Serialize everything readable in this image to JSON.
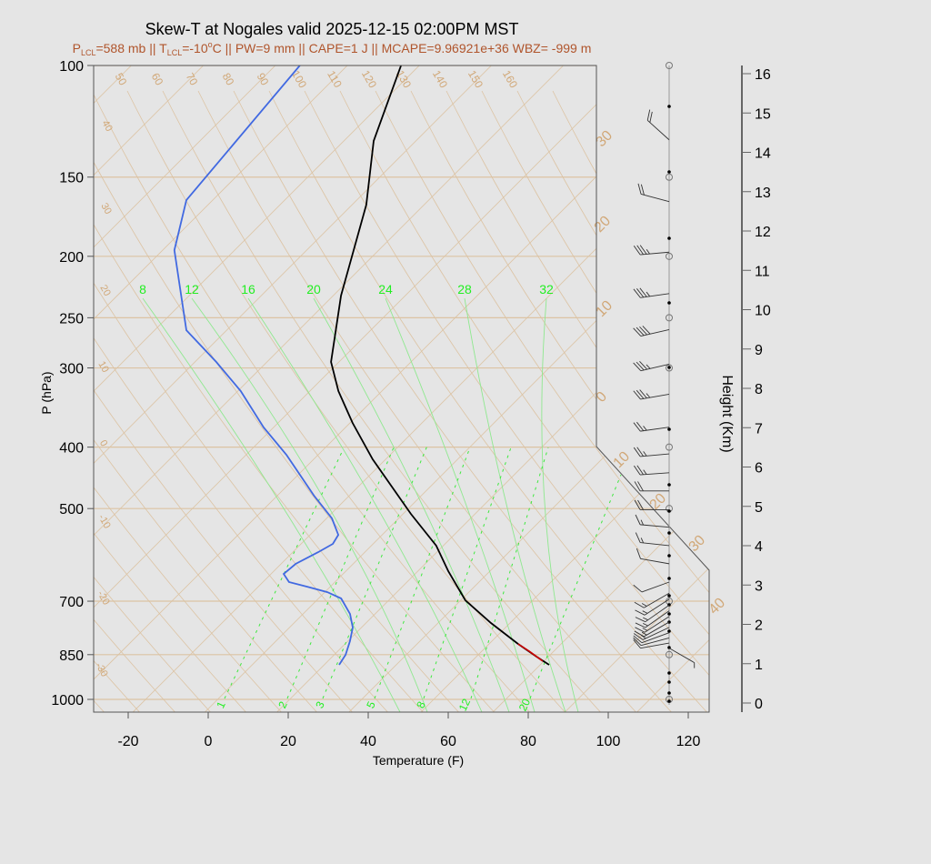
{
  "chart_data": {
    "type": "line",
    "title": "Skew-T at Nogales valid 2025-12-15 02:00PM MST",
    "subtitle": {
      "p_sym": "P",
      "p_sub": "LCL",
      "p_val": "=588 mb || T",
      "t_sub": "LCL",
      "t_val": "=-10",
      "deg": "o",
      "rest": "C || PW=9 mm || CAPE=1 J || MCAPE=9.96921e+36 WBZ= -999 m"
    },
    "xlabel": "Temperature (F)",
    "ylabel": "P (hPa)",
    "y2label": "Height (Km)",
    "xlim": [
      -28,
      125
    ],
    "ylim_hpa": [
      1035,
      100
    ],
    "x_ticks": [
      "-20",
      "0",
      "20",
      "40",
      "60",
      "80",
      "100",
      "120"
    ],
    "x_tick_values": [
      -20,
      0,
      20,
      40,
      60,
      80,
      100,
      120
    ],
    "y_ticks": [
      "100",
      "150",
      "200",
      "250",
      "300",
      "400",
      "500",
      "700",
      "850",
      "1000"
    ],
    "y_tick_values": [
      100,
      150,
      200,
      250,
      300,
      400,
      500,
      700,
      850,
      1000
    ],
    "height_ticks": [
      "0",
      "1",
      "2",
      "3",
      "4",
      "5",
      "6",
      "7",
      "8",
      "9",
      "10",
      "11",
      "12",
      "13",
      "14",
      "15",
      "16"
    ],
    "isotherm_labels_left": [
      "40",
      "30",
      "20",
      "10",
      "0",
      "-10",
      "-20",
      "-30"
    ],
    "isotherm_labels_right": [
      "30",
      "20",
      "10",
      "0",
      "10",
      "20",
      "30",
      "40"
    ],
    "dry_adiabat_labels": [
      "50",
      "60",
      "70",
      "80",
      "90",
      "100",
      "110",
      "120",
      "130",
      "140",
      "150",
      "160"
    ],
    "moist_adiabat_labels": [
      "8",
      "12",
      "16",
      "20",
      "24",
      "28",
      "32"
    ],
    "mixing_ratio_labels": [
      "1",
      "2",
      "3",
      "5",
      "8",
      "12",
      "20"
    ],
    "series": [
      {
        "name": "temperature",
        "color": "#000000",
        "unit": "F",
        "p": [
          100,
          131.5,
          165.8,
          230.7,
          293.6,
          326.3,
          366.3,
          418,
          509.7,
          572.2,
          627.9,
          653.1,
          697.6,
          757.8,
          817.6,
          856.3,
          882.1
        ],
        "t": [
          -110.2,
          -98.2,
          -84.1,
          -67.7,
          -53.6,
          -44.5,
          -33.0,
          -18.9,
          4.3,
          18.6,
          28.0,
          32.3,
          39.5,
          51.6,
          63.6,
          71.4,
          76.6
        ]
      },
      {
        "name": "dewpoint",
        "color": "#4169e1",
        "unit": "F",
        "p": [
          100,
          163.1,
          195.6,
          261.6,
          293.6,
          326.3,
          372.4,
          411.2,
          477,
          518.2,
          550.1,
          568.5,
          585.7,
          611.3,
          633.9,
          653.1,
          664.1,
          677.4,
          693.1,
          733.2,
          770.4,
          809.5,
          850.6,
          882.1
        ],
        "t": [
          -135.5,
          -130.2,
          -120.7,
          -97.7,
          -82.3,
          -68.9,
          -54.1,
          -41.6,
          -24.5,
          -14.3,
          -8.6,
          -7.7,
          -9.3,
          -12.0,
          -12.5,
          -9.1,
          -3.4,
          3.0,
          8.0,
          14.1,
          18.2,
          20.9,
          23.2,
          24.1
        ]
      },
      {
        "name": "highlight",
        "color": "#cc0000",
        "unit": "F",
        "p": [
          817.6,
          840,
          870
        ],
        "t": [
          63.6,
          68.3,
          74.0
        ]
      }
    ],
    "winds": [
      {
        "p": 131,
        "dir": 312,
        "kt": 20
      },
      {
        "p": 164,
        "dir": 285,
        "kt": 20
      },
      {
        "p": 197,
        "dir": 265,
        "kt": 35
      },
      {
        "p": 229,
        "dir": 262,
        "kt": 35
      },
      {
        "p": 261,
        "dir": 257,
        "kt": 40
      },
      {
        "p": 296,
        "dir": 257,
        "kt": 35
      },
      {
        "p": 330,
        "dir": 260,
        "kt": 35
      },
      {
        "p": 372,
        "dir": 262,
        "kt": 25
      },
      {
        "p": 410,
        "dir": 265,
        "kt": 25
      },
      {
        "p": 439,
        "dir": 266,
        "kt": 25
      },
      {
        "p": 469,
        "dir": 270,
        "kt": 20
      },
      {
        "p": 502,
        "dir": 270,
        "kt": 20
      },
      {
        "p": 535,
        "dir": 275,
        "kt": 15
      },
      {
        "p": 572,
        "dir": 276,
        "kt": 15
      },
      {
        "p": 611,
        "dir": 280,
        "kt": 10
      },
      {
        "p": 653,
        "dir": 250,
        "kt": 10
      },
      {
        "p": 680,
        "dir": 240,
        "kt": 15
      },
      {
        "p": 695,
        "dir": 237,
        "kt": 15
      },
      {
        "p": 710,
        "dir": 235,
        "kt": 15
      },
      {
        "p": 725,
        "dir": 235,
        "kt": 15
      },
      {
        "p": 740,
        "dir": 237,
        "kt": 15
      },
      {
        "p": 755,
        "dir": 240,
        "kt": 15
      },
      {
        "p": 770,
        "dir": 245,
        "kt": 15
      },
      {
        "p": 785,
        "dir": 250,
        "kt": 10
      },
      {
        "p": 800,
        "dir": 255,
        "kt": 10
      },
      {
        "p": 815,
        "dir": 260,
        "kt": 10
      },
      {
        "p": 830,
        "dir": 120,
        "kt": 5
      }
    ]
  }
}
